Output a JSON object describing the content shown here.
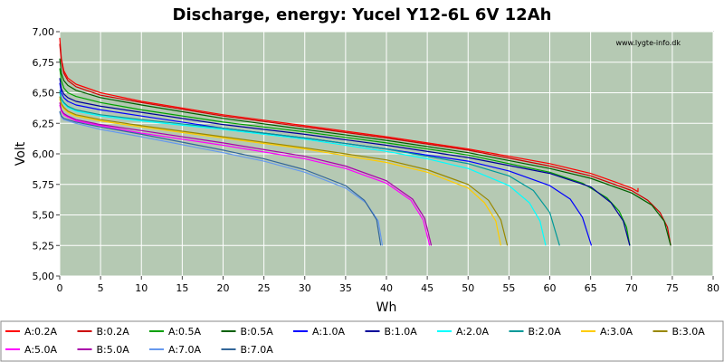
{
  "chart_data": {
    "type": "line",
    "title": "Discharge, energy: Yucel Y12-6L 6V 12Ah",
    "xlabel": "Wh",
    "ylabel": "Volt",
    "watermark": "www.lygte-info.dk",
    "xlim": [
      0,
      80
    ],
    "ylim": [
      5.0,
      7.0
    ],
    "x_ticks": [
      "0",
      "5",
      "10",
      "15",
      "20",
      "25",
      "30",
      "35",
      "40",
      "45",
      "50",
      "55",
      "60",
      "65",
      "70",
      "75",
      "80"
    ],
    "y_ticks": [
      "5,00",
      "5,25",
      "5,50",
      "5,75",
      "6,00",
      "6,25",
      "6,50",
      "6,75",
      "7,00"
    ],
    "grid": true,
    "legend_position": "bottom",
    "series": [
      {
        "name": "A:0.2A",
        "color": "#ff0000",
        "x": [
          0,
          0.2,
          0.5,
          1,
          2,
          5,
          10,
          20,
          30,
          40,
          50,
          60,
          65,
          68,
          70,
          70.8,
          70.8
        ],
        "y": [
          6.95,
          6.78,
          6.68,
          6.62,
          6.57,
          6.5,
          6.43,
          6.32,
          6.23,
          6.14,
          6.04,
          5.92,
          5.84,
          5.77,
          5.72,
          5.69,
          5.72
        ]
      },
      {
        "name": "B:0.2A",
        "color": "#cc0000",
        "x": [
          0,
          0.2,
          0.5,
          1,
          2,
          5,
          10,
          20,
          30,
          40,
          50,
          60,
          65,
          70,
          72,
          73.5,
          74.4,
          74.8
        ],
        "y": [
          6.9,
          6.76,
          6.66,
          6.6,
          6.55,
          6.48,
          6.42,
          6.31,
          6.22,
          6.13,
          6.03,
          5.9,
          5.82,
          5.7,
          5.62,
          5.52,
          5.4,
          5.25
        ]
      },
      {
        "name": "A:0.5A",
        "color": "#00a000",
        "x": [
          0,
          0.2,
          0.5,
          1,
          2,
          5,
          10,
          20,
          30,
          40,
          50,
          60,
          64,
          67,
          68.5,
          69.4,
          69.8
        ],
        "y": [
          6.7,
          6.6,
          6.54,
          6.5,
          6.47,
          6.42,
          6.36,
          6.26,
          6.18,
          6.09,
          5.99,
          5.85,
          5.76,
          5.64,
          5.53,
          5.4,
          5.25
        ]
      },
      {
        "name": "B:0.5A",
        "color": "#006000",
        "x": [
          0,
          0.2,
          0.5,
          1,
          2,
          5,
          10,
          20,
          30,
          40,
          50,
          60,
          65,
          70,
          72.5,
          74,
          74.8
        ],
        "y": [
          6.78,
          6.66,
          6.6,
          6.56,
          6.52,
          6.46,
          6.4,
          6.29,
          6.2,
          6.11,
          6.01,
          5.88,
          5.8,
          5.68,
          5.58,
          5.45,
          5.25
        ]
      },
      {
        "name": "A:1.0A",
        "color": "#0000ff",
        "x": [
          0,
          0.2,
          0.5,
          1,
          2,
          5,
          10,
          20,
          30,
          40,
          50,
          55,
          60,
          62.5,
          64,
          65.1
        ],
        "y": [
          6.58,
          6.5,
          6.46,
          6.43,
          6.4,
          6.36,
          6.31,
          6.21,
          6.13,
          6.04,
          5.94,
          5.86,
          5.74,
          5.63,
          5.48,
          5.25
        ]
      },
      {
        "name": "B:1.0A",
        "color": "#000099",
        "x": [
          0,
          0.2,
          0.5,
          1,
          2,
          5,
          10,
          20,
          30,
          40,
          50,
          60,
          65,
          67.5,
          69,
          69.8
        ],
        "y": [
          6.62,
          6.53,
          6.49,
          6.46,
          6.43,
          6.39,
          6.34,
          6.24,
          6.16,
          6.07,
          5.97,
          5.84,
          5.73,
          5.6,
          5.45,
          5.25
        ]
      },
      {
        "name": "A:2.0A",
        "color": "#00ffff",
        "x": [
          0,
          0.2,
          0.5,
          1,
          2,
          5,
          10,
          20,
          30,
          40,
          45,
          50,
          55,
          57.5,
          58.8,
          59.5
        ],
        "y": [
          6.5,
          6.44,
          6.41,
          6.38,
          6.35,
          6.31,
          6.27,
          6.2,
          6.12,
          6.02,
          5.96,
          5.88,
          5.74,
          5.6,
          5.45,
          5.25
        ]
      },
      {
        "name": "B:2.0A",
        "color": "#009999",
        "x": [
          0,
          0.2,
          0.5,
          1,
          2,
          5,
          10,
          20,
          30,
          40,
          50,
          55,
          58,
          60,
          61.2
        ],
        "y": [
          6.52,
          6.45,
          6.42,
          6.39,
          6.36,
          6.32,
          6.28,
          6.21,
          6.13,
          6.04,
          5.92,
          5.82,
          5.7,
          5.52,
          5.25
        ]
      },
      {
        "name": "A:3.0A",
        "color": "#ffcc00",
        "x": [
          0,
          0.2,
          0.5,
          1,
          2,
          5,
          10,
          20,
          30,
          40,
          45,
          50,
          52,
          53.4,
          54
        ],
        "y": [
          6.45,
          6.4,
          6.37,
          6.34,
          6.31,
          6.27,
          6.22,
          6.13,
          6.04,
          5.93,
          5.85,
          5.72,
          5.6,
          5.45,
          5.25
        ]
      },
      {
        "name": "B:3.0A",
        "color": "#998800",
        "x": [
          0,
          0.2,
          0.5,
          1,
          2,
          5,
          10,
          20,
          30,
          40,
          45,
          50,
          52.5,
          54,
          54.8
        ],
        "y": [
          6.47,
          6.41,
          6.38,
          6.35,
          6.32,
          6.28,
          6.23,
          6.14,
          6.05,
          5.95,
          5.87,
          5.75,
          5.62,
          5.46,
          5.25
        ]
      },
      {
        "name": "A:5.0A",
        "color": "#ff00ff",
        "x": [
          0,
          0.2,
          0.5,
          1,
          2,
          5,
          10,
          20,
          30,
          35,
          40,
          43,
          44.5,
          45.3
        ],
        "y": [
          6.4,
          6.35,
          6.32,
          6.3,
          6.27,
          6.23,
          6.17,
          6.07,
          5.96,
          5.88,
          5.76,
          5.62,
          5.46,
          5.25
        ]
      },
      {
        "name": "B:5.0A",
        "color": "#aa00aa",
        "x": [
          0,
          0.2,
          0.5,
          1,
          2,
          5,
          10,
          20,
          30,
          35,
          40,
          43.2,
          44.7,
          45.5
        ],
        "y": [
          6.42,
          6.36,
          6.33,
          6.31,
          6.28,
          6.24,
          6.19,
          6.09,
          5.98,
          5.9,
          5.78,
          5.63,
          5.47,
          5.25
        ]
      },
      {
        "name": "A:7.0A",
        "color": "#6699ee",
        "x": [
          0,
          0.2,
          0.5,
          1,
          2,
          5,
          10,
          20,
          25,
          30,
          35,
          37.5,
          39,
          39.5
        ],
        "y": [
          6.34,
          6.3,
          6.28,
          6.27,
          6.25,
          6.2,
          6.14,
          6.01,
          5.94,
          5.85,
          5.72,
          5.6,
          5.45,
          5.25
        ]
      },
      {
        "name": "B:7.0A",
        "color": "#336699",
        "x": [
          0,
          0.2,
          0.5,
          1,
          2,
          5,
          10,
          20,
          25,
          30,
          35,
          37.3,
          38.8,
          39.3
        ],
        "y": [
          6.35,
          6.31,
          6.29,
          6.28,
          6.26,
          6.22,
          6.16,
          6.03,
          5.96,
          5.87,
          5.74,
          5.62,
          5.46,
          5.25
        ]
      }
    ]
  }
}
